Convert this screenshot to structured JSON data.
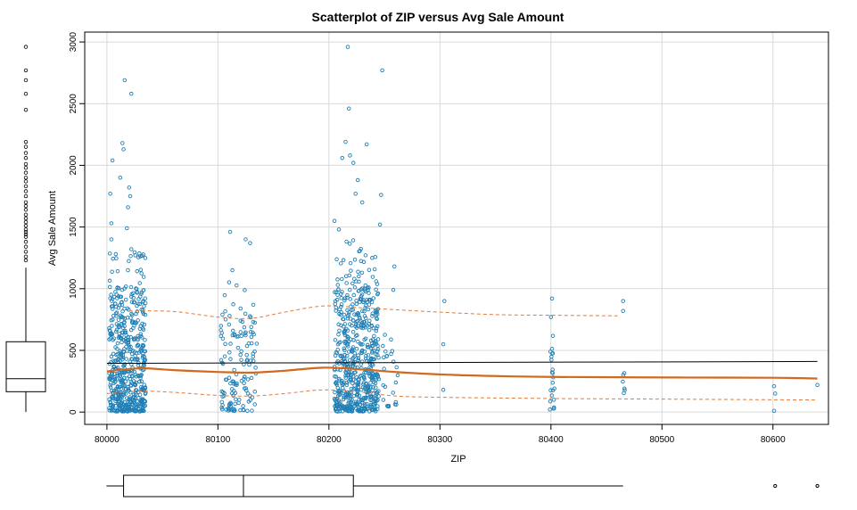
{
  "chart_data": {
    "type": "scatter",
    "title": "Scatterplot of ZIP versus Avg Sale Amount",
    "xlabel": "ZIP",
    "ylabel": "Avg Sale Amount",
    "xlim": [
      79980,
      80650
    ],
    "ylim": [
      -100,
      3080
    ],
    "x_ticks": [
      80000,
      80100,
      80200,
      80300,
      80400,
      80500,
      80600
    ],
    "y_ticks": [
      0,
      500,
      1000,
      1500,
      2000,
      2500,
      3000
    ],
    "grid": true,
    "colors": {
      "points": "#1f7fb5",
      "smoother": "#d2691e",
      "band": "#e07b39",
      "regression": "#000000",
      "gridline": "#d9d9d9",
      "boxplot": "#000000"
    },
    "series": [
      {
        "type": "scatter",
        "clusters": [
          {
            "x_range": [
              80002,
              80035
            ],
            "y_range": [
              5,
              1000
            ],
            "count": 520
          },
          {
            "x_range": [
              80002,
              80035
            ],
            "y_range": [
              1000,
              1300
            ],
            "count": 30
          },
          {
            "x_range": [
              80102,
              80135
            ],
            "y_range": [
              10,
              800
            ],
            "count": 130
          },
          {
            "x_range": [
              80102,
              80135
            ],
            "y_range": [
              800,
              1150
            ],
            "count": 8
          },
          {
            "x_range": [
              80205,
              80245
            ],
            "y_range": [
              5,
              1000
            ],
            "count": 560
          },
          {
            "x_range": [
              80205,
              80245
            ],
            "y_range": [
              1000,
              1400
            ],
            "count": 40
          },
          {
            "x_range": [
              80248,
              80262
            ],
            "y_range": [
              40,
              650
            ],
            "count": 25
          },
          {
            "x_range": [
              80399,
              80404
            ],
            "y_range": [
              20,
              650
            ],
            "count": 22
          },
          {
            "x_range": [
              80464,
              80467
            ],
            "y_range": [
              150,
              350
            ],
            "count": 6
          }
        ],
        "points": [
          {
            "x": 80003,
            "y": 1770
          },
          {
            "x": 80005,
            "y": 2040
          },
          {
            "x": 80004,
            "y": 1530
          },
          {
            "x": 80004,
            "y": 1400
          },
          {
            "x": 80012,
            "y": 1900
          },
          {
            "x": 80014,
            "y": 2180
          },
          {
            "x": 80015,
            "y": 2130
          },
          {
            "x": 80016,
            "y": 2690
          },
          {
            "x": 80022,
            "y": 2580
          },
          {
            "x": 80020,
            "y": 1820
          },
          {
            "x": 80021,
            "y": 1750
          },
          {
            "x": 80019,
            "y": 1660
          },
          {
            "x": 80018,
            "y": 1490
          },
          {
            "x": 80022,
            "y": 1320
          },
          {
            "x": 80008,
            "y": 1280
          },
          {
            "x": 80111,
            "y": 1460
          },
          {
            "x": 80125,
            "y": 1400
          },
          {
            "x": 80129,
            "y": 1370
          },
          {
            "x": 80113,
            "y": 1150
          },
          {
            "x": 80205,
            "y": 1550
          },
          {
            "x": 80209,
            "y": 1480
          },
          {
            "x": 80212,
            "y": 2060
          },
          {
            "x": 80215,
            "y": 2190
          },
          {
            "x": 80217,
            "y": 2960
          },
          {
            "x": 80218,
            "y": 2460
          },
          {
            "x": 80219,
            "y": 2080
          },
          {
            "x": 80222,
            "y": 2020
          },
          {
            "x": 80226,
            "y": 1880
          },
          {
            "x": 80224,
            "y": 1770
          },
          {
            "x": 80230,
            "y": 1700
          },
          {
            "x": 80234,
            "y": 2170
          },
          {
            "x": 80248,
            "y": 2770
          },
          {
            "x": 80247,
            "y": 1760
          },
          {
            "x": 80246,
            "y": 1520
          },
          {
            "x": 80259,
            "y": 1180
          },
          {
            "x": 80258,
            "y": 990
          },
          {
            "x": 80304,
            "y": 900
          },
          {
            "x": 80303,
            "y": 550
          },
          {
            "x": 80303,
            "y": 180
          },
          {
            "x": 80401,
            "y": 920
          },
          {
            "x": 80400,
            "y": 770
          },
          {
            "x": 80465,
            "y": 900
          },
          {
            "x": 80465,
            "y": 820
          },
          {
            "x": 80601,
            "y": 210
          },
          {
            "x": 80602,
            "y": 150
          },
          {
            "x": 80601,
            "y": 10
          },
          {
            "x": 80640,
            "y": 220
          }
        ]
      },
      {
        "type": "line",
        "style": "solid",
        "x": [
          80000,
          80640
        ],
        "y": [
          395,
          410
        ]
      },
      {
        "type": "smooth",
        "style": "solid",
        "x": [
          80000,
          80030,
          80060,
          80100,
          80130,
          80160,
          80195,
          80230,
          80260,
          80300,
          80350,
          80400,
          80460,
          80520,
          80600,
          80640
        ],
        "y": [
          330,
          355,
          340,
          325,
          320,
          335,
          360,
          345,
          325,
          305,
          292,
          285,
          282,
          280,
          278,
          272
        ]
      },
      {
        "type": "smooth",
        "style": "dashed",
        "x": [
          80020,
          80060,
          80100,
          80130,
          80160,
          80195,
          80230,
          80260,
          80300,
          80350,
          80400,
          80460
        ],
        "y": [
          820,
          815,
          770,
          760,
          810,
          860,
          845,
          830,
          810,
          790,
          785,
          780
        ]
      },
      {
        "type": "smooth",
        "style": "dashed",
        "x": [
          80000,
          80030,
          80060,
          80100,
          80130,
          80160,
          80195,
          80230,
          80260,
          80300,
          80400,
          80500,
          80600,
          80640
        ],
        "y": [
          150,
          170,
          160,
          135,
          130,
          150,
          180,
          160,
          130,
          120,
          110,
          105,
          100,
          98
        ]
      }
    ],
    "y_boxplot": {
      "min": 0,
      "q1": 165,
      "median": 270,
      "q3": 570,
      "whisker_high": 1170,
      "outliers": [
        1230,
        1260,
        1300,
        1340,
        1380,
        1420,
        1440,
        1460,
        1480,
        1510,
        1540,
        1570,
        1600,
        1640,
        1670,
        1700,
        1750,
        1790,
        1830,
        1870,
        1900,
        1940,
        1980,
        2010,
        2060,
        2100,
        2150,
        2190,
        2450,
        2580,
        2690,
        2770,
        2960
      ]
    },
    "x_boxplot": {
      "min": 80002,
      "q1": 80015,
      "median": 80123,
      "q3": 80222,
      "whisker_high": 80465,
      "outliers": [
        80602,
        80640
      ]
    }
  }
}
